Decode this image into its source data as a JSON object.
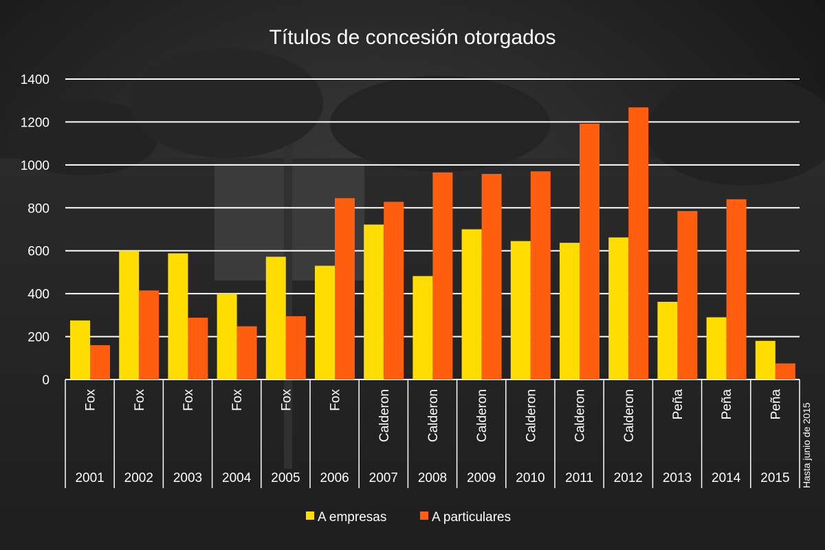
{
  "chart_data": {
    "type": "bar",
    "title": "Títulos de concesión otorgados",
    "xlabel": "",
    "ylabel": "",
    "ylim": [
      0,
      1400
    ],
    "yticks": [
      0,
      200,
      400,
      600,
      800,
      1000,
      1200,
      1400
    ],
    "grid": true,
    "legend_position": "bottom",
    "categories": [
      "2001",
      "2002",
      "2003",
      "2004",
      "2005",
      "2006",
      "2007",
      "2008",
      "2009",
      "2010",
      "2011",
      "2012",
      "2013",
      "2014",
      "2015"
    ],
    "category_groups": [
      "Fox",
      "Fox",
      "Fox",
      "Fox",
      "Fox",
      "Fox",
      "Calderon",
      "Calderon",
      "Calderon",
      "Calderon",
      "Calderon",
      "Calderon",
      "Peña",
      "Peña",
      "Peña"
    ],
    "series": [
      {
        "name": "A empresas",
        "color": "#ffdd00",
        "values": [
          275,
          600,
          588,
          400,
          572,
          530,
          722,
          482,
          700,
          645,
          637,
          662,
          362,
          290,
          180
        ]
      },
      {
        "name": "A particulares",
        "color": "#ff5e0e",
        "values": [
          160,
          415,
          288,
          248,
          295,
          845,
          828,
          965,
          958,
          970,
          1192,
          1268,
          785,
          840,
          75
        ]
      }
    ],
    "annotation": "Hasta junio de 2015"
  }
}
